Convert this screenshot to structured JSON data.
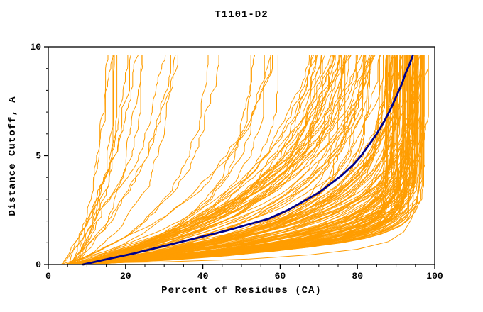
{
  "chart_data": {
    "type": "line",
    "title": "T1101-D2",
    "xlabel": "Percent of Residues (CA)",
    "ylabel": "Distance Cutoff, A",
    "xlim": [
      0,
      100
    ],
    "ylim": [
      0,
      10
    ],
    "x_ticks": [
      0,
      20,
      40,
      60,
      80,
      100
    ],
    "y_ticks": [
      0,
      5,
      10
    ],
    "x_minor_step": 5,
    "y_minor_step": 1,
    "grid": false,
    "legend": "none",
    "colors": {
      "ensemble": "#ff9d00",
      "highlight": "#00008b",
      "frame": "#000000",
      "text": "#000000",
      "background": "#ffffff"
    },
    "highlight_series": {
      "name": "selected-model-curve",
      "color": "#00008b",
      "points": [
        [
          9,
          0
        ],
        [
          14,
          0.2
        ],
        [
          22,
          0.5
        ],
        [
          30,
          0.85
        ],
        [
          38,
          1.2
        ],
        [
          46,
          1.55
        ],
        [
          52,
          1.85
        ],
        [
          57,
          2.1
        ],
        [
          62,
          2.5
        ],
        [
          66,
          2.9
        ],
        [
          70,
          3.3
        ],
        [
          73,
          3.7
        ],
        [
          76,
          4.1
        ],
        [
          79,
          4.6
        ],
        [
          81,
          5.0
        ],
        [
          83,
          5.5
        ],
        [
          85,
          6.0
        ],
        [
          87,
          6.6
        ],
        [
          88.5,
          7.1
        ],
        [
          90,
          7.7
        ],
        [
          91.5,
          8.3
        ],
        [
          92.5,
          8.8
        ],
        [
          93.5,
          9.2
        ],
        [
          94.3,
          9.6
        ]
      ]
    },
    "outlier_series": {
      "name": "low-outlier-curve",
      "points": [
        [
          5,
          0.05
        ],
        [
          30,
          0.12
        ],
        [
          52,
          0.25
        ],
        [
          68,
          0.45
        ],
        [
          80,
          0.7
        ],
        [
          88,
          1.05
        ],
        [
          92,
          1.5
        ],
        [
          94,
          2.1
        ],
        [
          95.5,
          3.0
        ],
        [
          96.3,
          4.2
        ],
        [
          96.8,
          6.0
        ],
        [
          97,
          9.6
        ]
      ]
    },
    "ensemble": {
      "seed": 1101,
      "step_y": 0.2,
      "y_max": 9.6,
      "groups": [
        {
          "count": 105,
          "end": [
            87,
            97
          ],
          "start": [
            4,
            11
          ],
          "k": [
            0.45,
            1.5
          ],
          "p": [
            0.9,
            1.25
          ]
        },
        {
          "count": 45,
          "end": [
            74,
            92
          ],
          "start": [
            4,
            12
          ],
          "k": [
            0.22,
            0.65
          ],
          "p": [
            0.85,
            1.15
          ]
        },
        {
          "count": 18,
          "end": [
            45,
            80
          ],
          "start": [
            3,
            10
          ],
          "k": [
            0.15,
            0.5
          ],
          "p": [
            0.8,
            1.1
          ]
        },
        {
          "count": 14,
          "end": [
            16,
            48
          ],
          "start": [
            3,
            8
          ],
          "k": [
            0.12,
            0.45
          ],
          "p": [
            0.9,
            1.15
          ]
        }
      ]
    }
  }
}
